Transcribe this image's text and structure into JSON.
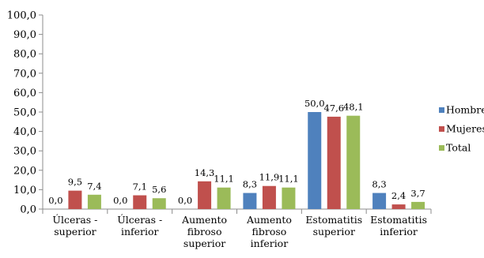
{
  "chart_data": {
    "type": "bar",
    "categories": [
      [
        "Úlceras -",
        "superior"
      ],
      [
        "Úlceras -",
        "inferior"
      ],
      [
        "Aumento",
        "fibroso",
        "superior"
      ],
      [
        "Aumento",
        "fibroso",
        "inferior"
      ],
      [
        "Estomatitis",
        "superior"
      ],
      [
        "Estomatitis",
        "inferior"
      ]
    ],
    "series": [
      {
        "name": "Hombres",
        "color": "#4F81BD",
        "values": [
          0.0,
          0.0,
          0.0,
          8.3,
          50.0,
          8.3
        ]
      },
      {
        "name": "Mujeres",
        "color": "#C0504D",
        "values": [
          9.5,
          7.1,
          14.3,
          11.9,
          47.6,
          2.4
        ]
      },
      {
        "name": "Total",
        "color": "#9BBB59",
        "values": [
          7.4,
          5.6,
          11.1,
          11.1,
          48.1,
          3.7
        ]
      }
    ],
    "ylim": [
      0,
      100
    ],
    "ytick_step": 10,
    "ytick_labels": [
      "0,0",
      "10,0",
      "20,0",
      "30,0",
      "40,0",
      "50,0",
      "60,0",
      "70,0",
      "80,0",
      "90,0",
      "100,0"
    ],
    "data_labels": [
      [
        "0,0",
        "0,0",
        "0,0",
        "8,3",
        "50,0",
        "8,3"
      ],
      [
        "9,5",
        "7,1",
        "14,3",
        "11,9",
        "47,6",
        "2,4"
      ],
      [
        "7,4",
        "5,6",
        "11,1",
        "11,1",
        "48,1",
        "3,7"
      ]
    ],
    "title": "",
    "xlabel": "",
    "ylabel": "",
    "grid": false,
    "legend_position": "right"
  }
}
